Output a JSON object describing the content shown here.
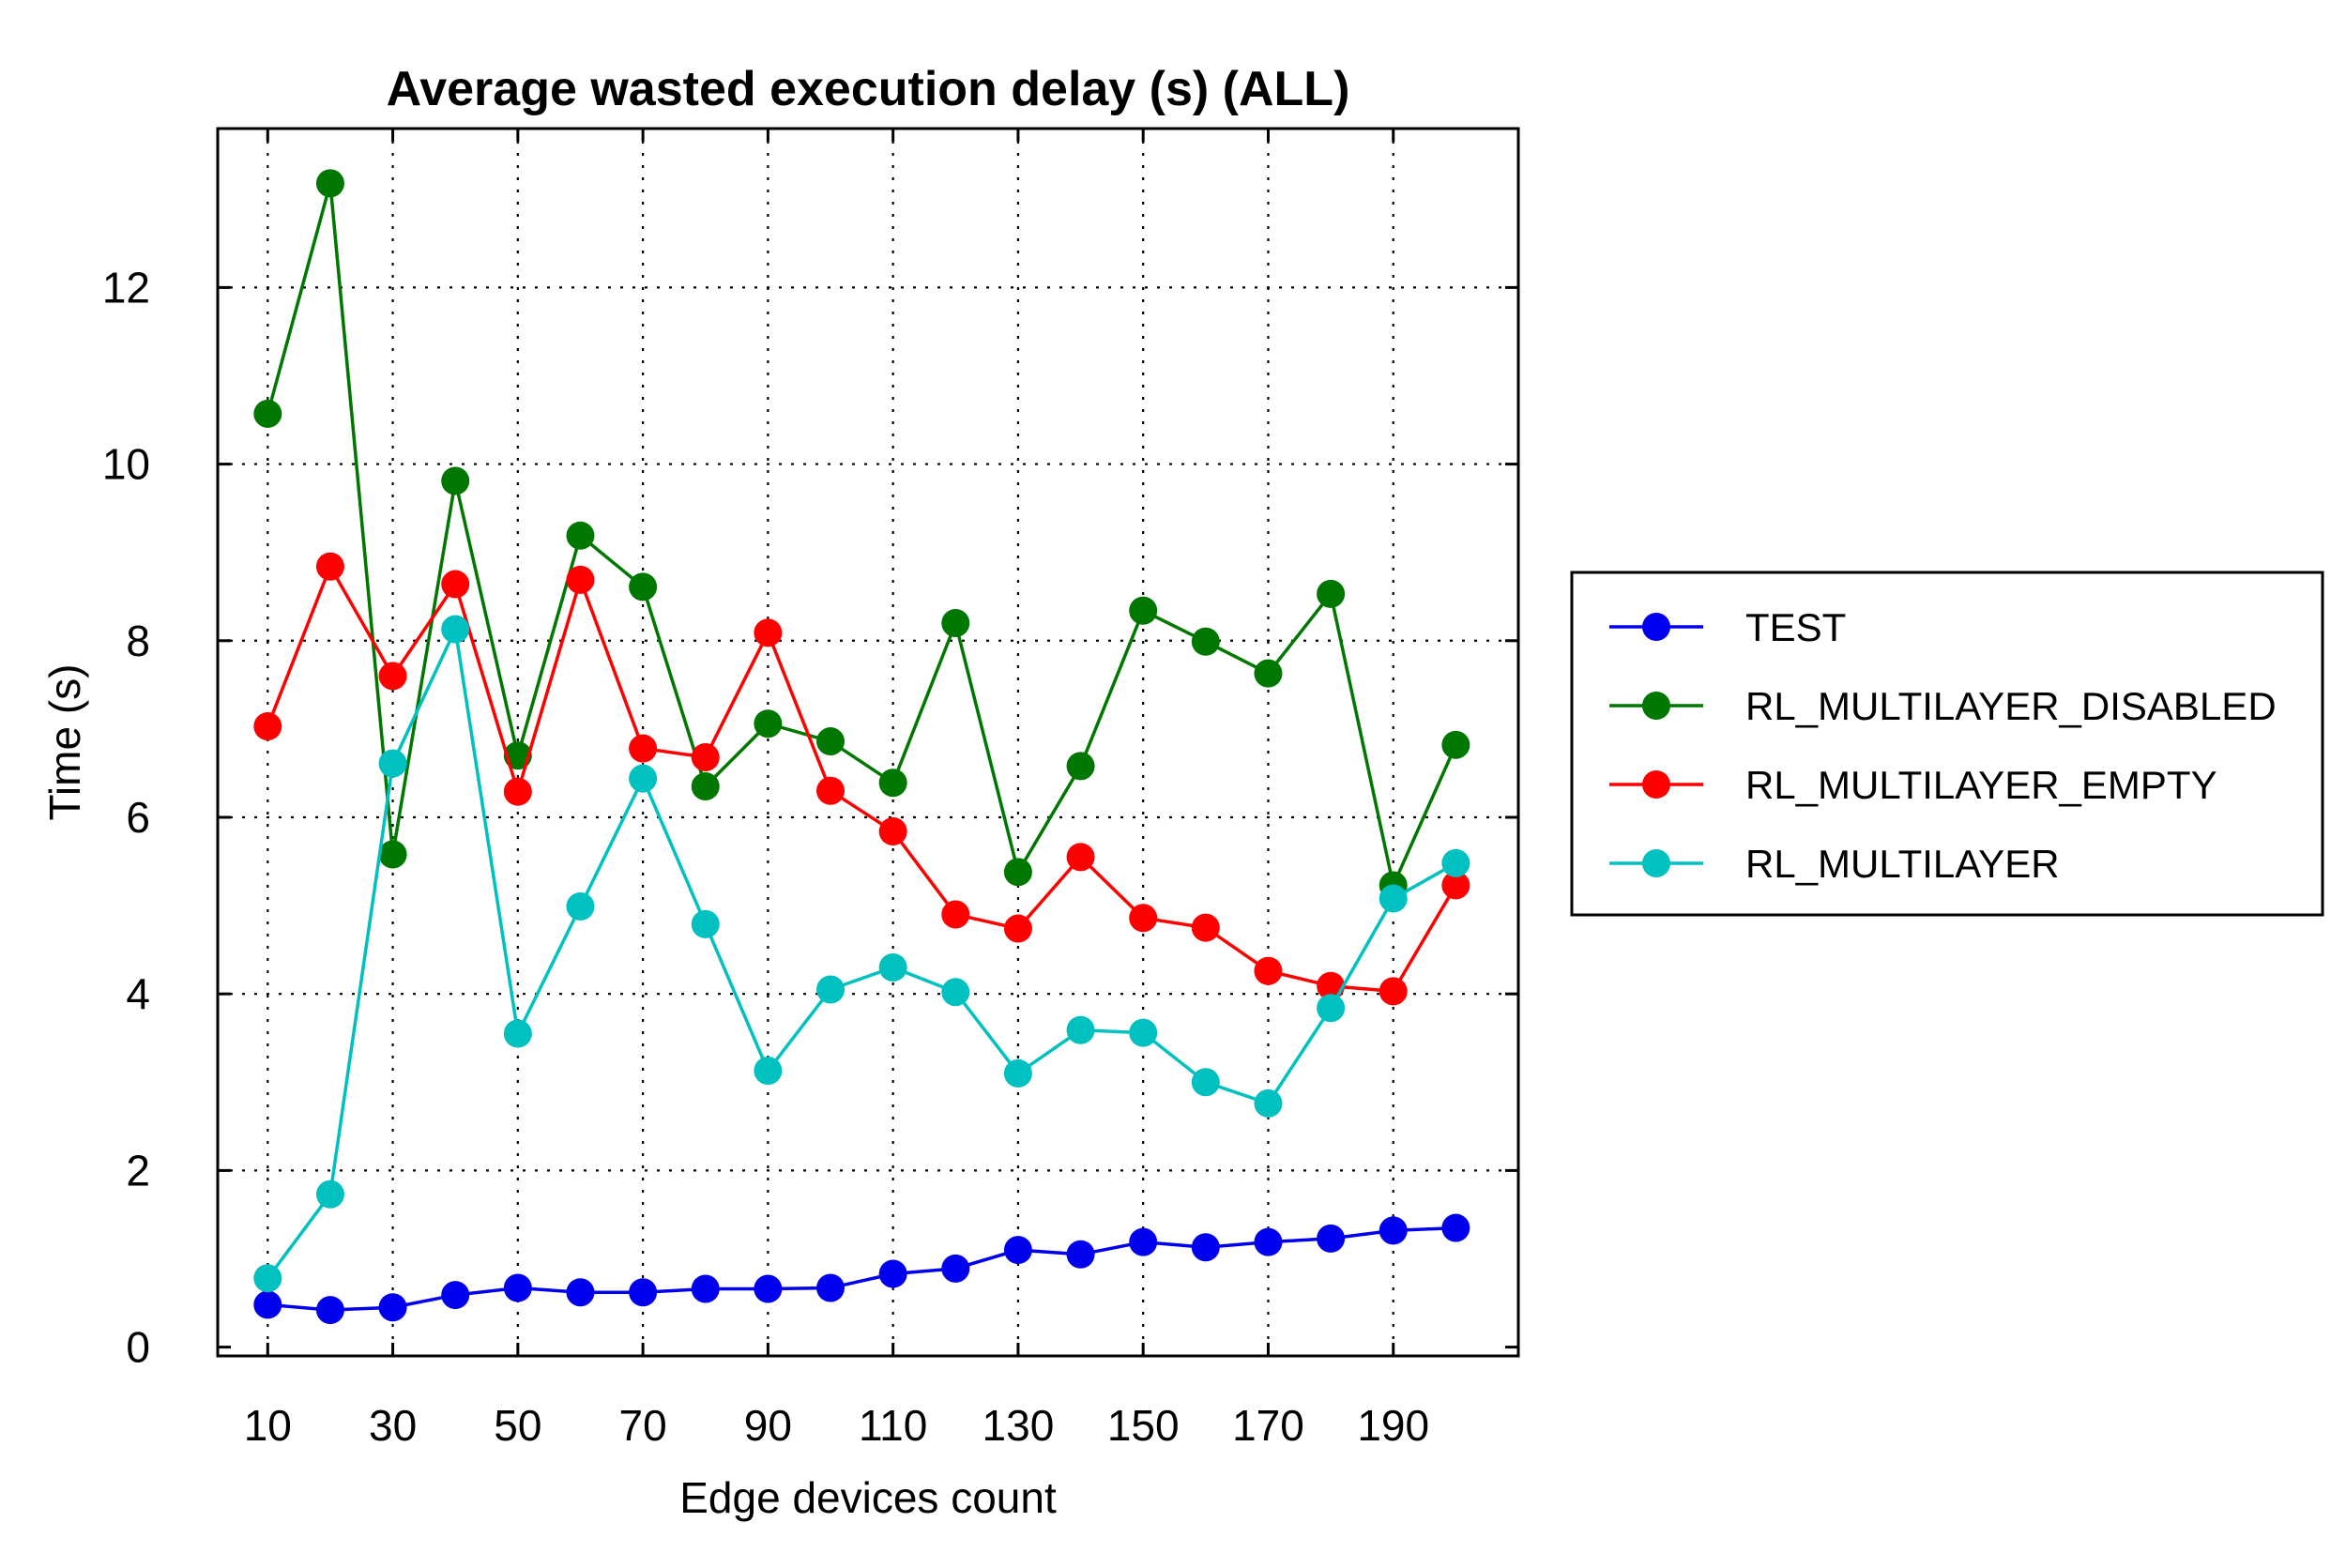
{
  "chart_data": {
    "type": "line",
    "title": "Average wasted execution delay (s) (ALL)",
    "xlabel": "Edge devices count",
    "ylabel": "Time (s)",
    "x": [
      10,
      20,
      30,
      40,
      50,
      60,
      70,
      80,
      90,
      100,
      110,
      120,
      130,
      140,
      150,
      160,
      170,
      180,
      190,
      200
    ],
    "x_ticks": [
      10,
      30,
      50,
      70,
      90,
      110,
      130,
      150,
      170,
      190
    ],
    "y_ticks": [
      0,
      2,
      4,
      6,
      8,
      10,
      12
    ],
    "xlim": [
      2,
      210
    ],
    "ylim": [
      -0.1,
      13.8
    ],
    "grid": true,
    "legend_position": "outside-right",
    "series": [
      {
        "name": "TEST",
        "color": "#0000ee",
        "values": [
          0.48,
          0.42,
          0.45,
          0.59,
          0.67,
          0.62,
          0.62,
          0.66,
          0.66,
          0.67,
          0.83,
          0.89,
          1.1,
          1.05,
          1.19,
          1.13,
          1.19,
          1.23,
          1.32,
          1.35
        ]
      },
      {
        "name": "RL_MULTILAYER_DISABLED",
        "color": "#007700",
        "values": [
          10.57,
          13.18,
          5.58,
          9.81,
          6.7,
          9.19,
          8.61,
          6.35,
          7.06,
          6.86,
          6.39,
          8.2,
          5.38,
          6.58,
          8.34,
          7.99,
          7.63,
          8.53,
          5.23,
          6.82
        ]
      },
      {
        "name": "RL_MULTILAYER_EMPTY",
        "color": "#ff0000",
        "values": [
          7.03,
          8.84,
          7.6,
          8.64,
          6.29,
          8.69,
          6.78,
          6.68,
          8.09,
          6.3,
          5.84,
          4.9,
          4.74,
          5.55,
          4.86,
          4.75,
          4.26,
          4.09,
          4.03,
          5.23
        ]
      },
      {
        "name": "RL_MULTILAYER",
        "color": "#00c0c0",
        "values": [
          0.78,
          1.73,
          6.61,
          8.13,
          3.55,
          4.99,
          6.44,
          4.79,
          3.13,
          4.05,
          4.3,
          4.02,
          3.1,
          3.59,
          3.56,
          3.0,
          2.76,
          3.84,
          5.08,
          5.48
        ]
      }
    ]
  }
}
